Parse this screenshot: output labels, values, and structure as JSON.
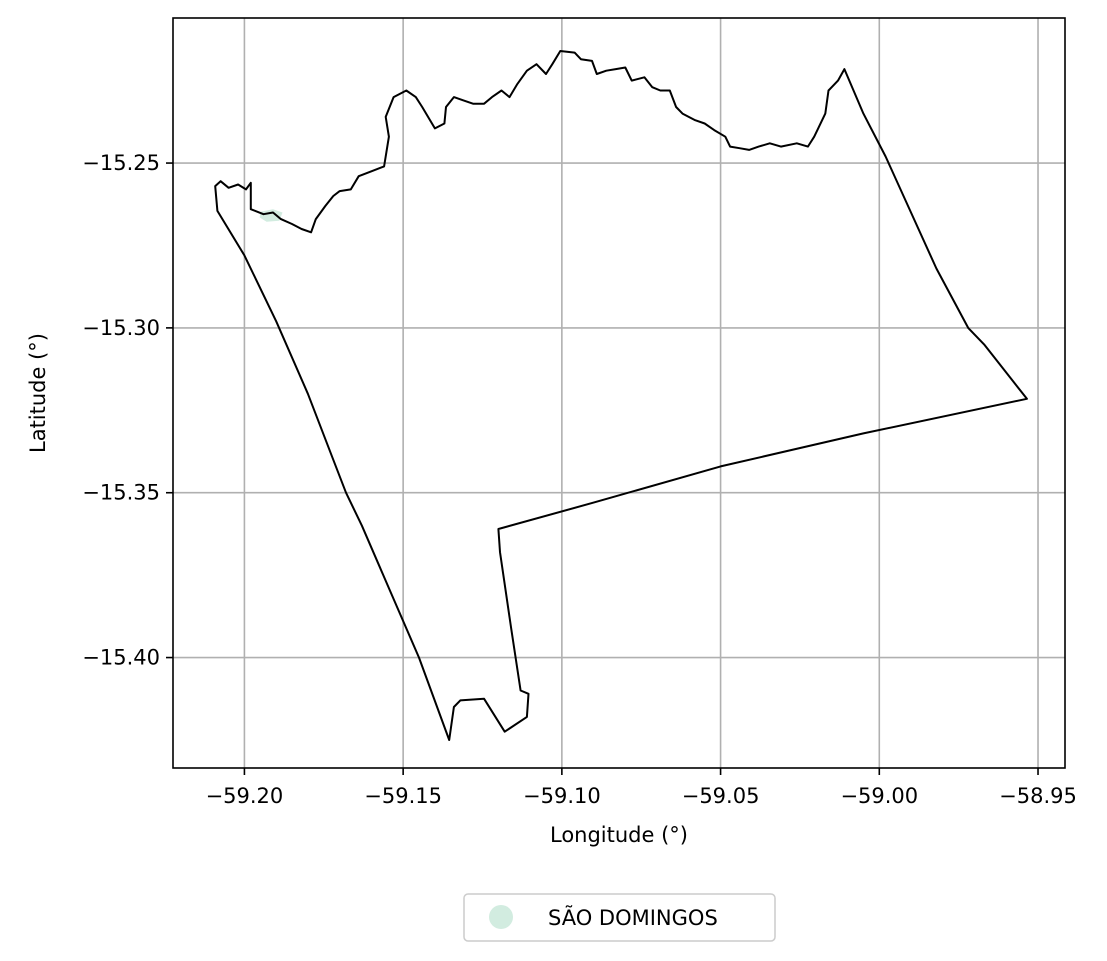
{
  "chart_data": {
    "type": "map",
    "xlabel": "Longitude (°)",
    "ylabel": "Latitude (°)",
    "xlim": [
      -59.2225,
      -58.9415
    ],
    "ylim": [
      -15.4335,
      -15.206
    ],
    "x_ticks": [
      -59.2,
      -59.15,
      -59.1,
      -59.05,
      -59.0,
      -58.95
    ],
    "x_tick_labels": [
      "−59.20",
      "−59.15",
      "−59.10",
      "−59.05",
      "−59.00",
      "−58.95"
    ],
    "y_ticks": [
      -15.25,
      -15.3,
      -15.35,
      -15.4
    ],
    "y_tick_labels": [
      "−15.25",
      "−15.30",
      "−15.35",
      "−15.40"
    ],
    "grid": true,
    "boundary_color": "#000000",
    "boundary": [
      [
        -59.2085,
        -15.2645
      ],
      [
        -59.2092,
        -15.257
      ],
      [
        -59.2075,
        -15.2555
      ],
      [
        -59.205,
        -15.2575
      ],
      [
        -59.202,
        -15.2565
      ],
      [
        -59.1995,
        -15.258
      ],
      [
        -59.198,
        -15.256
      ],
      [
        -59.198,
        -15.264
      ],
      [
        -59.194,
        -15.2655
      ],
      [
        -59.191,
        -15.265
      ],
      [
        -59.1885,
        -15.267
      ],
      [
        -59.185,
        -15.2685
      ],
      [
        -59.182,
        -15.27
      ],
      [
        -59.179,
        -15.271
      ],
      [
        -59.1775,
        -15.267
      ],
      [
        -59.1745,
        -15.263
      ],
      [
        -59.172,
        -15.26
      ],
      [
        -59.17,
        -15.2585
      ],
      [
        -59.1665,
        -15.258
      ],
      [
        -59.164,
        -15.254
      ],
      [
        -59.16,
        -15.2525
      ],
      [
        -59.156,
        -15.251
      ],
      [
        -59.1545,
        -15.242
      ],
      [
        -59.1555,
        -15.236
      ],
      [
        -59.153,
        -15.23
      ],
      [
        -59.149,
        -15.228
      ],
      [
        -59.146,
        -15.23
      ],
      [
        -59.144,
        -15.233
      ],
      [
        -59.14,
        -15.2395
      ],
      [
        -59.137,
        -15.238
      ],
      [
        -59.1365,
        -15.233
      ],
      [
        -59.134,
        -15.23
      ],
      [
        -59.131,
        -15.231
      ],
      [
        -59.128,
        -15.232
      ],
      [
        -59.1245,
        -15.232
      ],
      [
        -59.122,
        -15.23
      ],
      [
        -59.119,
        -15.228
      ],
      [
        -59.1165,
        -15.23
      ],
      [
        -59.114,
        -15.226
      ],
      [
        -59.111,
        -15.222
      ],
      [
        -59.108,
        -15.22
      ],
      [
        -59.105,
        -15.223
      ],
      [
        -59.103,
        -15.22
      ],
      [
        -59.1005,
        -15.216
      ],
      [
        -59.096,
        -15.2165
      ],
      [
        -59.094,
        -15.2185
      ],
      [
        -59.0905,
        -15.219
      ],
      [
        -59.089,
        -15.223
      ],
      [
        -59.086,
        -15.222
      ],
      [
        -59.083,
        -15.2215
      ],
      [
        -59.08,
        -15.221
      ],
      [
        -59.078,
        -15.225
      ],
      [
        -59.074,
        -15.224
      ],
      [
        -59.0715,
        -15.227
      ],
      [
        -59.069,
        -15.228
      ],
      [
        -59.066,
        -15.228
      ],
      [
        -59.064,
        -15.233
      ],
      [
        -59.062,
        -15.235
      ],
      [
        -59.058,
        -15.237
      ],
      [
        -59.055,
        -15.238
      ],
      [
        -59.052,
        -15.24
      ],
      [
        -59.0485,
        -15.242
      ],
      [
        -59.047,
        -15.245
      ],
      [
        -59.044,
        -15.2455
      ],
      [
        -59.041,
        -15.246
      ],
      [
        -59.038,
        -15.245
      ],
      [
        -59.0345,
        -15.244
      ],
      [
        -59.031,
        -15.245
      ],
      [
        -59.026,
        -15.244
      ],
      [
        -59.0225,
        -15.245
      ],
      [
        -59.0205,
        -15.242
      ],
      [
        -59.017,
        -15.235
      ],
      [
        -59.016,
        -15.228
      ],
      [
        -59.015,
        -15.227
      ],
      [
        -59.013,
        -15.225
      ],
      [
        -59.011,
        -15.2215
      ],
      [
        -59.005,
        -15.235
      ],
      [
        -58.998,
        -15.248
      ],
      [
        -58.99,
        -15.265
      ],
      [
        -58.982,
        -15.282
      ],
      [
        -58.972,
        -15.3
      ],
      [
        -58.967,
        -15.305
      ],
      [
        -58.9535,
        -15.3215
      ],
      [
        -59.005,
        -15.332
      ],
      [
        -59.05,
        -15.342
      ],
      [
        -59.09,
        -15.353
      ],
      [
        -59.12,
        -15.361
      ],
      [
        -59.1195,
        -15.368
      ],
      [
        -59.116,
        -15.391
      ],
      [
        -59.113,
        -15.41
      ],
      [
        -59.1105,
        -15.411
      ],
      [
        -59.111,
        -15.418
      ],
      [
        -59.118,
        -15.4225
      ],
      [
        -59.1245,
        -15.4125
      ],
      [
        -59.132,
        -15.413
      ],
      [
        -59.134,
        -15.415
      ],
      [
        -59.1355,
        -15.425
      ],
      [
        -59.145,
        -15.4
      ],
      [
        -59.154,
        -15.38
      ],
      [
        -59.163,
        -15.36
      ],
      [
        -59.168,
        -15.35
      ],
      [
        -59.172,
        -15.34
      ],
      [
        -59.18,
        -15.32
      ],
      [
        -59.19,
        -15.298
      ],
      [
        -59.2,
        -15.278
      ],
      [
        -59.2085,
        -15.2645
      ]
    ],
    "features": [
      {
        "name": "SÃO DOMINGOS",
        "color": "#d2ece0",
        "polygon": [
          [
            -59.195,
            -15.2648
          ],
          [
            -59.191,
            -15.264
          ],
          [
            -59.188,
            -15.265
          ],
          [
            -59.189,
            -15.2675
          ],
          [
            -59.193,
            -15.2678
          ],
          [
            -59.1952,
            -15.2665
          ]
        ]
      }
    ],
    "legend": {
      "position": "bottom-center",
      "entries": [
        {
          "label": "SÃO DOMINGOS",
          "color": "#d2ece0",
          "marker": "circle"
        }
      ]
    }
  }
}
